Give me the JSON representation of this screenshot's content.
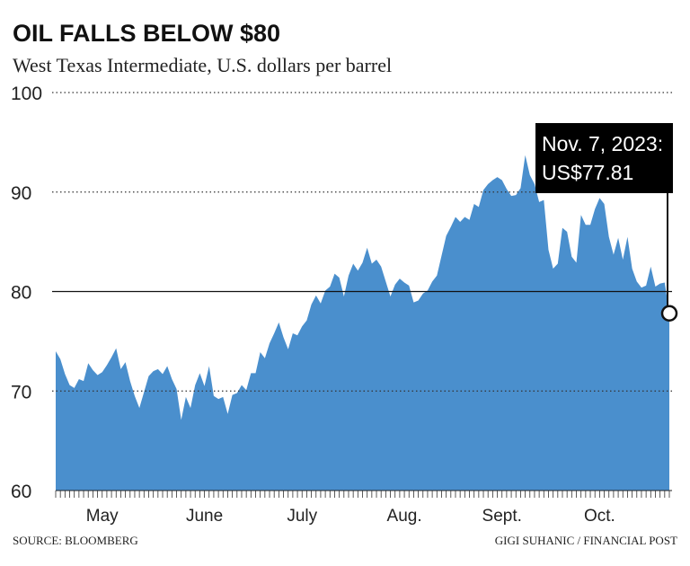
{
  "chart_data": {
    "type": "area",
    "title": "OIL FALLS BELOW $80",
    "subtitle": "West Texas Intermediate, U.S. dollars per barrel",
    "source": "SOURCE: BLOOMBERG",
    "credit": "GIGI SUHANIC / FINANCIAL POST",
    "color": "#4a8fcd",
    "ylim": [
      60,
      100
    ],
    "yticks": [
      60,
      70,
      80,
      90,
      100
    ],
    "grid": true,
    "reference_line": 80,
    "annotation": {
      "date": "Nov. 7, 2023:",
      "label": "US$77.81"
    },
    "categories": [
      null,
      null,
      null,
      null,
      null,
      null,
      null,
      null,
      null,
      null,
      "May",
      null,
      null,
      null,
      null,
      null,
      null,
      null,
      null,
      null,
      null,
      null,
      null,
      null,
      null,
      null,
      null,
      null,
      null,
      null,
      null,
      null,
      "June",
      null,
      null,
      null,
      null,
      null,
      null,
      null,
      null,
      null,
      null,
      null,
      null,
      null,
      null,
      null,
      null,
      null,
      null,
      null,
      null,
      "July",
      null,
      null,
      null,
      null,
      null,
      null,
      null,
      null,
      null,
      null,
      null,
      null,
      null,
      null,
      null,
      null,
      null,
      null,
      null,
      null,
      null,
      "Aug.",
      null,
      null,
      null,
      null,
      null,
      null,
      null,
      null,
      null,
      null,
      null,
      null,
      null,
      null,
      null,
      null,
      null,
      null,
      null,
      null,
      "Sept.",
      null,
      null,
      null,
      null,
      null,
      null,
      null,
      null,
      null,
      null,
      null,
      null,
      null,
      null,
      null,
      null,
      null,
      null,
      null,
      null,
      "Oct.",
      null,
      null,
      null,
      null,
      null,
      null,
      null,
      null,
      null,
      null,
      null,
      null,
      null,
      null,
      null
    ],
    "values": [
      74,
      73.2,
      71.7,
      70.6,
      70.3,
      71.2,
      71,
      72.8,
      72.1,
      71.6,
      71.9,
      72.6,
      73.4,
      74.3,
      72.2,
      72.9,
      71,
      69.5,
      68.3,
      69.9,
      71.5,
      72,
      72.2,
      71.7,
      72.5,
      71.2,
      70.2,
      67.1,
      69.4,
      68.3,
      70.6,
      71.8,
      70.5,
      72.5,
      69.5,
      69.2,
      69.4,
      67.7,
      69.6,
      69.8,
      70.6,
      70.1,
      71.8,
      71.8,
      73.9,
      73.3,
      74.8,
      75.8,
      76.9,
      75.4,
      74.2,
      75.8,
      75.6,
      76.5,
      77.1,
      78.7,
      79.6,
      78.8,
      80.1,
      80.5,
      81.8,
      81.4,
      79.5,
      81.6,
      82.8,
      82.1,
      82.9,
      84.4,
      82.8,
      83.2,
      82.5,
      81,
      79.5,
      80.7,
      81.3,
      80.9,
      80.6,
      78.9,
      79.1,
      79.8,
      80.1,
      81,
      81.6,
      83.6,
      85.6,
      86.5,
      87.5,
      87,
      87.5,
      87.2,
      88.8,
      88.5,
      90.2,
      90.8,
      91.2,
      91.5,
      91.2,
      90.3,
      89.6,
      89.7,
      90.4,
      93.7,
      91.7,
      90.8,
      89,
      89.2,
      84.2,
      82.3,
      82.8,
      86.4,
      86,
      83.5,
      82.9,
      87.7,
      86.7,
      86.7,
      88.3,
      89.4,
      88.8,
      85.5,
      83.7,
      85.4,
      83.2,
      85.5,
      82.3,
      81,
      80.4,
      80.6,
      82.5,
      80.5,
      80.8,
      80.9,
      77.81
    ]
  }
}
